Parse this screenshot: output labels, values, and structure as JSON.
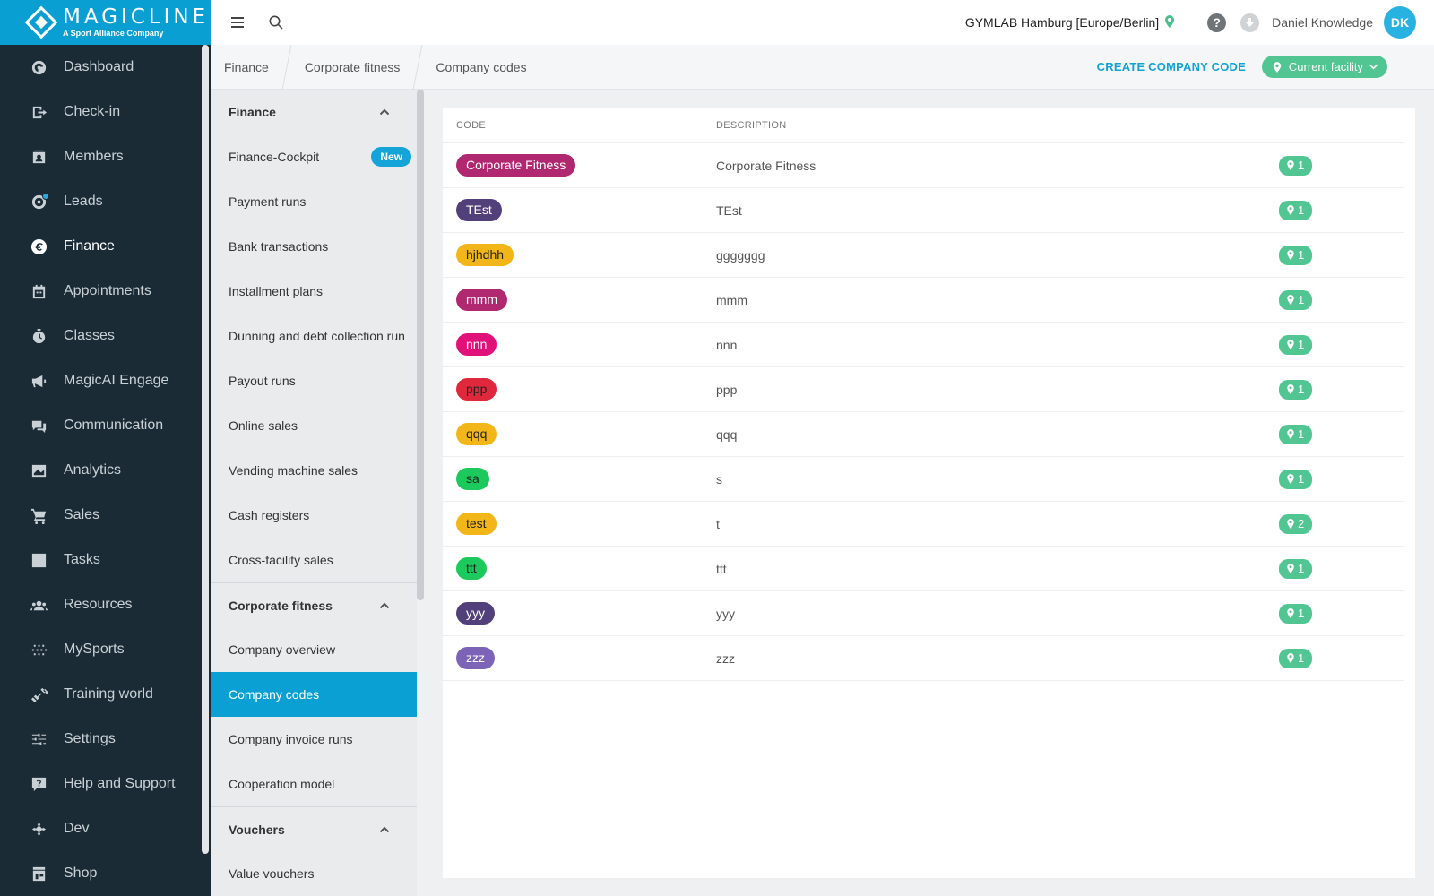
{
  "brand": {
    "name": "MAGICLINE",
    "subtitle": "A Sport Alliance Company",
    "color": "#0a9fd3"
  },
  "nav": {
    "items": [
      {
        "label": "Dashboard",
        "icon": "dashboard-icon",
        "active": false
      },
      {
        "label": "Check-in",
        "icon": "check-in-icon",
        "active": false
      },
      {
        "label": "Members",
        "icon": "members-icon",
        "active": false
      },
      {
        "label": "Leads",
        "icon": "leads-icon",
        "active": false
      },
      {
        "label": "Finance",
        "icon": "finance-icon",
        "active": true
      },
      {
        "label": "Appointments",
        "icon": "calendar-icon",
        "active": false
      },
      {
        "label": "Classes",
        "icon": "stopwatch-icon",
        "active": false
      },
      {
        "label": "MagicAI Engage",
        "icon": "megaphone-icon",
        "active": false
      },
      {
        "label": "Communication",
        "icon": "chat-icon",
        "active": false
      },
      {
        "label": "Analytics",
        "icon": "chart-icon",
        "active": false
      },
      {
        "label": "Sales",
        "icon": "cart-icon",
        "active": false
      },
      {
        "label": "Tasks",
        "icon": "checkbox-icon",
        "active": false
      },
      {
        "label": "Resources",
        "icon": "group-icon",
        "active": false
      },
      {
        "label": "MySports",
        "icon": "dots-grid-icon",
        "active": false
      },
      {
        "label": "Training world",
        "icon": "dumbbell-icon",
        "active": false
      },
      {
        "label": "Settings",
        "icon": "sliders-icon",
        "active": false
      },
      {
        "label": "Help and Support",
        "icon": "help-chat-icon",
        "active": false
      },
      {
        "label": "Dev",
        "icon": "crosshair-icon",
        "active": false
      },
      {
        "label": "Shop",
        "icon": "shop-icon",
        "active": false
      }
    ]
  },
  "header": {
    "facility": "GYMLAB Hamburg [Europe/Berlin]",
    "help": "?",
    "user_name": "Daniel Knowledge",
    "avatar_initials": "DK",
    "avatar_color": "#28b2e2"
  },
  "breadcrumb": [
    "Finance",
    "Corporate fitness",
    "Company codes"
  ],
  "actions": {
    "create_label": "CREATE COMPANY CODE",
    "facility_filter": "Current facility",
    "accent": "#12a3d6",
    "facility_color": "#52c692"
  },
  "subnav": {
    "sections": [
      {
        "title": "Finance",
        "items": [
          {
            "label": "Finance-Cockpit",
            "badge": "New"
          },
          {
            "label": "Payment runs"
          },
          {
            "label": "Bank transactions"
          },
          {
            "label": "Installment plans"
          },
          {
            "label": "Dunning and debt collection run"
          },
          {
            "label": "Payout runs"
          },
          {
            "label": "Online sales"
          },
          {
            "label": "Vending machine sales"
          },
          {
            "label": "Cash registers"
          },
          {
            "label": "Cross-facility sales"
          }
        ]
      },
      {
        "title": "Corporate fitness",
        "items": [
          {
            "label": "Company overview"
          },
          {
            "label": "Company codes",
            "active": true
          },
          {
            "label": "Company invoice runs"
          },
          {
            "label": "Cooperation model"
          }
        ]
      },
      {
        "title": "Vouchers",
        "items": [
          {
            "label": "Value vouchers"
          }
        ]
      }
    ]
  },
  "table": {
    "columns": {
      "code": "CODE",
      "description": "DESCRIPTION"
    },
    "rows": [
      {
        "code": "Corporate Fitness",
        "description": "Corporate Fitness",
        "facilities": "1",
        "bg": "#b0286f",
        "fg": "#ffffff"
      },
      {
        "code": "TEst",
        "description": "TEst",
        "facilities": "1",
        "bg": "#52407a",
        "fg": "#ffffff"
      },
      {
        "code": "hjhdhh",
        "description": "ggggggg",
        "facilities": "1",
        "bg": "#f2b619",
        "fg": "#222222"
      },
      {
        "code": "mmm",
        "description": "mmm",
        "facilities": "1",
        "bg": "#b0286f",
        "fg": "#ffffff"
      },
      {
        "code": "nnn",
        "description": "nnn",
        "facilities": "1",
        "bg": "#e0127a",
        "fg": "#ffffff"
      },
      {
        "code": "ppp",
        "description": "ppp",
        "facilities": "1",
        "bg": "#e0283d",
        "fg": "#222222"
      },
      {
        "code": "qqq",
        "description": "qqq",
        "facilities": "1",
        "bg": "#f2b619",
        "fg": "#222222"
      },
      {
        "code": "sa",
        "description": "s",
        "facilities": "1",
        "bg": "#1cc95c",
        "fg": "#222222"
      },
      {
        "code": "test",
        "description": "t",
        "facilities": "2",
        "bg": "#f2b619",
        "fg": "#222222"
      },
      {
        "code": "ttt",
        "description": "ttt",
        "facilities": "1",
        "bg": "#1cc95c",
        "fg": "#222222"
      },
      {
        "code": "yyy",
        "description": "yyy",
        "facilities": "1",
        "bg": "#52407a",
        "fg": "#ffffff"
      },
      {
        "code": "zzz",
        "description": "zzz",
        "facilities": "1",
        "bg": "#7c63b8",
        "fg": "#ffffff"
      }
    ]
  }
}
